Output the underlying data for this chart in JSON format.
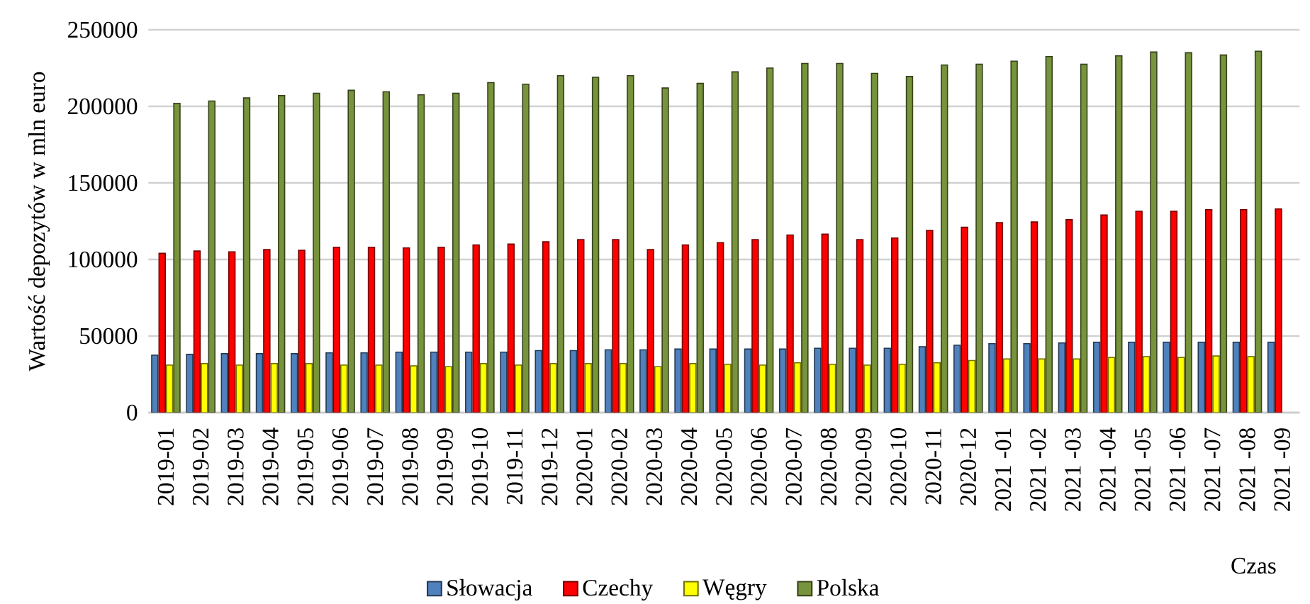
{
  "chart_data": {
    "type": "bar",
    "xlabel": "Czas",
    "ylabel": "Wartość depozytów w mln euro",
    "categories": [
      "2019-01",
      "2019-02",
      "2019-03",
      "2019-04",
      "2019-05",
      "2019-06",
      "2019-07",
      "2019-08",
      "2019-09",
      "2019-10",
      "2019-11",
      "2019-12",
      "2020-01",
      "2020-02",
      "2020-03",
      "2020-04",
      "2020-05",
      "2020-06",
      "2020-07",
      "2020-08",
      "2020-09",
      "2020-10",
      "2020-11",
      "2020-12",
      "2021 -01",
      "2021 -02",
      "2021 -03",
      "2021 -04",
      "2021 -05",
      "2021 -06",
      "2021 -07",
      "2021 -08",
      "2021 -09"
    ],
    "series": [
      {
        "name": "Słowacja",
        "color": "#4f81bd",
        "values": [
          37500,
          38000,
          38500,
          38500,
          38500,
          39000,
          39000,
          39500,
          39500,
          39500,
          39500,
          40500,
          40500,
          41000,
          41000,
          41500,
          41500,
          41500,
          41500,
          42000,
          42000,
          42000,
          43000,
          44000,
          45000,
          45000,
          45500,
          46000,
          46000,
          46000,
          46000,
          46000,
          46000
        ]
      },
      {
        "name": "Czechy",
        "color": "#ff0000",
        "values": [
          104000,
          105500,
          105000,
          106500,
          106000,
          108000,
          108000,
          107500,
          108000,
          109500,
          110000,
          111500,
          113000,
          113000,
          106500,
          109500,
          111000,
          113000,
          116000,
          116500,
          113000,
          114000,
          119000,
          121000,
          124000,
          124500,
          126000,
          129000,
          131500,
          131500,
          132500,
          132500,
          133000
        ]
      },
      {
        "name": "Węgry",
        "color": "#ffff00",
        "values": [
          31000,
          32000,
          31000,
          32000,
          32000,
          31000,
          31000,
          30500,
          30000,
          32000,
          31000,
          32000,
          32000,
          32000,
          30000,
          32000,
          31500,
          31000,
          32500,
          31500,
          31000,
          31500,
          32500,
          34000,
          35000,
          35000,
          35000,
          36000,
          36500,
          36000,
          37000,
          36500,
          null
        ]
      },
      {
        "name": "Polska",
        "color": "#77933c",
        "values": [
          202000,
          203500,
          205500,
          207000,
          208500,
          210500,
          209500,
          207500,
          208500,
          215500,
          214500,
          220000,
          219000,
          220000,
          212000,
          215000,
          222500,
          225000,
          228000,
          228000,
          221500,
          219500,
          227000,
          227500,
          229500,
          232500,
          227500,
          233000,
          235500,
          235000,
          233500,
          236000,
          null
        ]
      }
    ],
    "ylim": [
      0,
      250000
    ],
    "yticks": [
      0,
      50000,
      100000,
      150000,
      200000,
      250000
    ],
    "grid": "y",
    "legend": "bottom"
  }
}
